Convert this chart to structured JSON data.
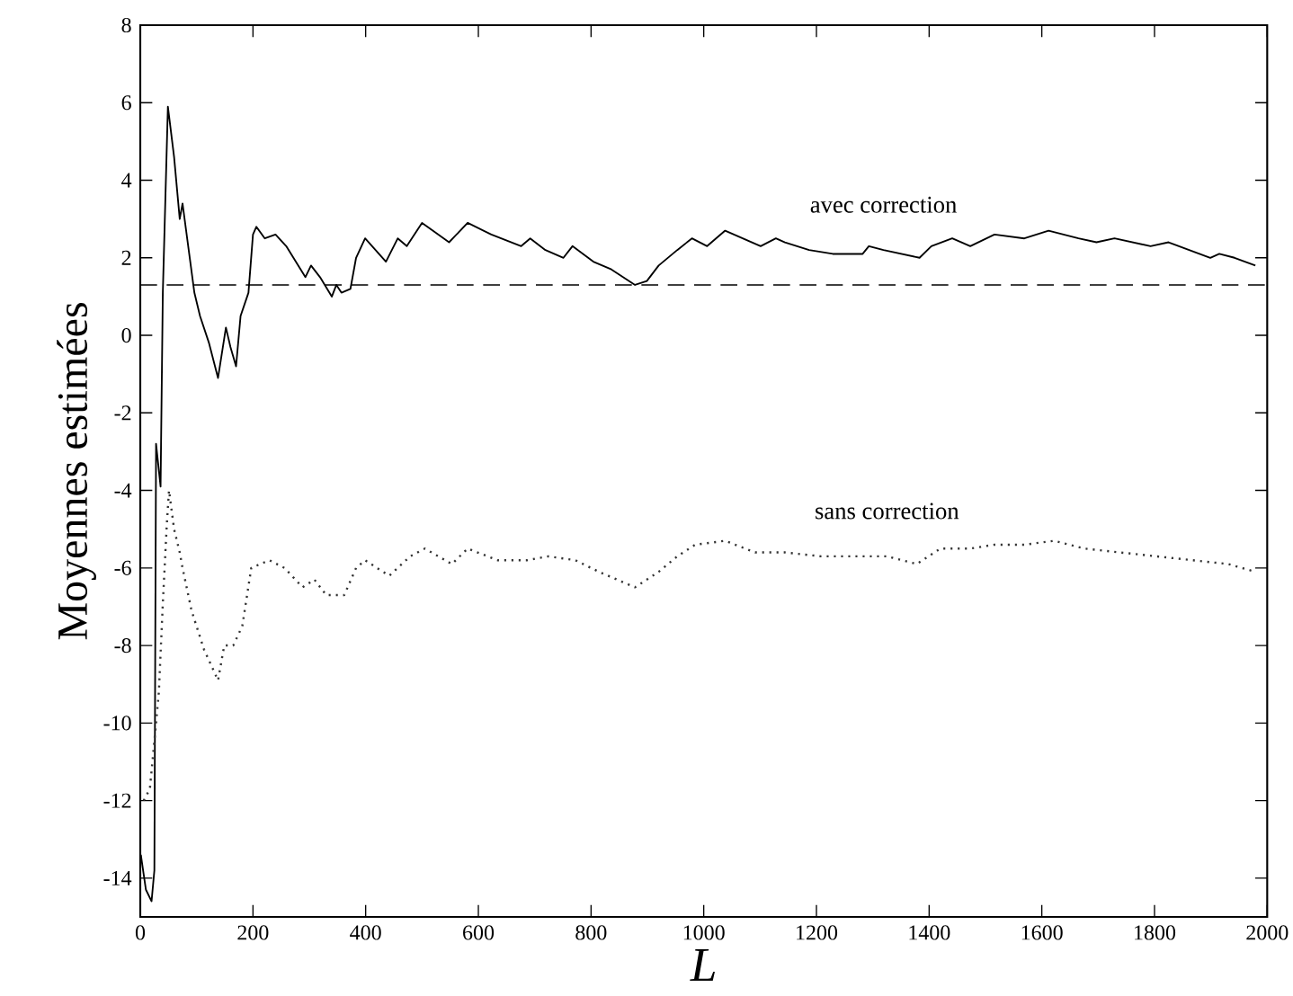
{
  "chart_data": {
    "type": "line",
    "xlabel": "L",
    "ylabel": "Moyennes estimées",
    "xlim": [
      0,
      2000
    ],
    "ylim": [
      -15,
      8
    ],
    "xticks": [
      0,
      200,
      400,
      600,
      800,
      1000,
      1200,
      1400,
      1600,
      1800,
      2000
    ],
    "yticks": [
      -14,
      -12,
      -10,
      -8,
      -6,
      -4,
      -2,
      0,
      2,
      4,
      6,
      8
    ],
    "grid": false,
    "marker": "none",
    "ref_lines": [
      {
        "axis": "y",
        "value": 1.3,
        "color": "#000000",
        "line_style": "dashed"
      }
    ],
    "series": [
      {
        "name": "avec correction",
        "color": "#000000",
        "line_style": "solid",
        "x": [
          1,
          10,
          20,
          25,
          28,
          36,
          40,
          49,
          60,
          70,
          75,
          96,
          106,
          122,
          138,
          152,
          160,
          170,
          178,
          192,
          200,
          206,
          221,
          240,
          259,
          293,
          303,
          319,
          340,
          348,
          357,
          373,
          383,
          399,
          436,
          457,
          473,
          500,
          548,
          581,
          623,
          676,
          692,
          719,
          751,
          767,
          804,
          836,
          878,
          899,
          920,
          953,
          979,
          1006,
          1038,
          1101,
          1128,
          1144,
          1187,
          1229,
          1282,
          1293,
          1319,
          1383,
          1404,
          1441,
          1473,
          1516,
          1569,
          1612,
          1665,
          1697,
          1729,
          1793,
          1825,
          1899,
          1915,
          1942,
          1979
        ],
        "values": [
          -13.4,
          -14.3,
          -14.6,
          -13.8,
          -2.8,
          -3.9,
          1.1,
          5.9,
          4.6,
          3.0,
          3.4,
          1.1,
          0.5,
          -0.2,
          -1.1,
          0.2,
          -0.3,
          -0.8,
          0.5,
          1.1,
          2.6,
          2.8,
          2.5,
          2.6,
          2.3,
          1.5,
          1.8,
          1.5,
          1.0,
          1.3,
          1.1,
          1.2,
          2.0,
          2.5,
          1.9,
          2.5,
          2.3,
          2.9,
          2.4,
          2.9,
          2.6,
          2.3,
          2.5,
          2.2,
          2.0,
          2.3,
          1.9,
          1.7,
          1.3,
          1.4,
          1.8,
          2.2,
          2.5,
          2.3,
          2.7,
          2.3,
          2.5,
          2.4,
          2.2,
          2.1,
          2.1,
          2.3,
          2.2,
          2.0,
          2.3,
          2.5,
          2.3,
          2.6,
          2.5,
          2.7,
          2.5,
          2.4,
          2.5,
          2.3,
          2.4,
          2.0,
          2.1,
          2.0,
          1.8
        ]
      },
      {
        "name": "sans correction",
        "color": "#333333",
        "line_style": "dotted",
        "x": [
          6,
          17,
          28,
          33,
          40,
          47,
          51,
          60,
          70,
          75,
          91,
          113,
          138,
          149,
          165,
          181,
          197,
          229,
          256,
          288,
          309,
          330,
          362,
          383,
          399,
          420,
          442,
          479,
          505,
          553,
          581,
          634,
          687,
          724,
          772,
          814,
          878,
          920,
          953,
          985,
          1038,
          1091,
          1144,
          1208,
          1272,
          1325,
          1378,
          1420,
          1473,
          1516,
          1569,
          1622,
          1675,
          1739,
          1803,
          1867,
          1931,
          1979
        ],
        "values": [
          -12.0,
          -11.7,
          -10.0,
          -9.2,
          -6.9,
          -4.9,
          -4.0,
          -5.0,
          -5.6,
          -6.0,
          -7.1,
          -8.1,
          -8.9,
          -8.0,
          -8.0,
          -7.5,
          -6.0,
          -5.8,
          -6.0,
          -6.5,
          -6.3,
          -6.7,
          -6.7,
          -6.0,
          -5.8,
          -6.0,
          -6.2,
          -5.7,
          -5.5,
          -5.9,
          -5.5,
          -5.8,
          -5.8,
          -5.7,
          -5.8,
          -6.1,
          -6.5,
          -6.1,
          -5.7,
          -5.4,
          -5.3,
          -5.6,
          -5.6,
          -5.7,
          -5.7,
          -5.7,
          -5.9,
          -5.5,
          -5.5,
          -5.4,
          -5.4,
          -5.3,
          -5.5,
          -5.6,
          -5.7,
          -5.8,
          -5.9,
          -6.1
        ]
      }
    ]
  }
}
